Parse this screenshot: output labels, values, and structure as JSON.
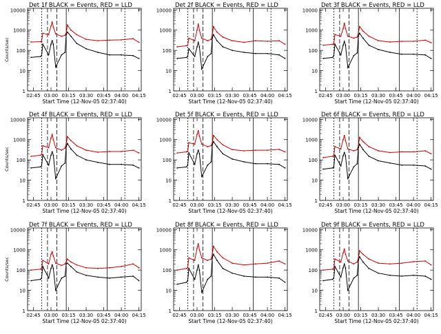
{
  "chart_data": [
    {
      "type": "line",
      "title": "Det 1f BLACK = Events, RED = LLD",
      "ylabel": "Counts/sec",
      "xlabel": "Start Time (12-Nov-05 02:37:40)",
      "x_ticks": [
        "02:45",
        "03:00",
        "03:15",
        "03:30",
        "03:45",
        "04:00",
        "04:15"
      ],
      "y_ticks": [
        "1",
        "10",
        "100",
        "1000",
        "10000"
      ],
      "yscale": "log",
      "ylim": [
        1,
        12000
      ],
      "x": [
        "02:43",
        "02:51",
        "02:52",
        "02:53",
        "02:58",
        "03:00",
        "03:01",
        "03:02",
        "03:04",
        "03:09",
        "03:12",
        "03:13",
        "03:14",
        "03:17",
        "03:22",
        "03:30",
        "03:40",
        "03:50",
        "04:00",
        "04:10",
        "04:15"
      ],
      "series": [
        {
          "color": "#cc0000",
          "values": [
            260,
            270,
            280,
            700,
            600,
            1600,
            2500,
            1400,
            650,
            500,
            560,
            700,
            1800,
            1000,
            600,
            350,
            300,
            320,
            330,
            380,
            250
          ]
        },
        {
          "color": "#000000",
          "values": [
            45,
            50,
            55,
            200,
            60,
            200,
            300,
            200,
            15,
            60,
            80,
            600,
            800,
            500,
            220,
            120,
            80,
            60,
            60,
            55,
            40
          ]
        }
      ]
    },
    {
      "type": "line",
      "title": "Det 2f BLACK = Events, RED = LLD",
      "ylabel": "",
      "xlabel": "Start Time (12-Nov-05 02:37:40)",
      "x_ticks": [
        "02:45",
        "03:00",
        "03:15",
        "03:30",
        "03:45",
        "04:00",
        "04:15"
      ],
      "y_ticks": [
        "1",
        "10",
        "100",
        "1000",
        "10000"
      ],
      "yscale": "log",
      "ylim": [
        1,
        12000
      ],
      "x": [
        "02:43",
        "02:51",
        "02:52",
        "02:53",
        "02:58",
        "03:00",
        "03:01",
        "03:02",
        "03:04",
        "03:09",
        "03:12",
        "03:13",
        "03:14",
        "03:17",
        "03:22",
        "03:30",
        "03:40",
        "03:50",
        "04:00",
        "04:10",
        "04:15"
      ],
      "series": [
        {
          "color": "#cc0000",
          "values": [
            150,
            170,
            180,
            400,
            300,
            1000,
            2000,
            1000,
            400,
            300,
            350,
            600,
            1500,
            800,
            450,
            300,
            250,
            300,
            280,
            300,
            200
          ]
        },
        {
          "color": "#000000",
          "values": [
            40,
            45,
            50,
            120,
            50,
            150,
            250,
            150,
            12,
            50,
            70,
            400,
            600,
            300,
            150,
            100,
            80,
            70,
            70,
            60,
            40
          ]
        }
      ]
    },
    {
      "type": "line",
      "title": "Det 3f BLACK = Events, RED = LLD",
      "ylabel": "",
      "xlabel": "Start Time (12-Nov-05 02:37:40)",
      "x_ticks": [
        "02:45",
        "03:00",
        "03:15",
        "03:30",
        "03:45",
        "04:00",
        "04:15"
      ],
      "y_ticks": [
        "1",
        "10",
        "100",
        "1000",
        "10000"
      ],
      "yscale": "log",
      "ylim": [
        1,
        12000
      ],
      "x": [
        "02:43",
        "02:51",
        "02:52",
        "02:53",
        "02:58",
        "03:00",
        "03:01",
        "03:02",
        "03:04",
        "03:09",
        "03:12",
        "03:13",
        "03:14",
        "03:17",
        "03:22",
        "03:30",
        "03:40",
        "03:50",
        "04:00",
        "04:10",
        "04:15"
      ],
      "series": [
        {
          "color": "#cc0000",
          "values": [
            180,
            200,
            210,
            600,
            500,
            1200,
            2200,
            1200,
            500,
            400,
            450,
            700,
            1500,
            900,
            500,
            300,
            260,
            280,
            280,
            320,
            240
          ]
        },
        {
          "color": "#000000",
          "values": [
            40,
            45,
            55,
            200,
            60,
            180,
            280,
            180,
            14,
            55,
            75,
            500,
            700,
            400,
            180,
            110,
            80,
            65,
            65,
            60,
            40
          ]
        }
      ]
    },
    {
      "type": "line",
      "title": "Det 4f BLACK = Events, RED = LLD",
      "ylabel": "Counts/sec",
      "xlabel": "Start Time (12-Nov-05 02:37:40)",
      "x_ticks": [
        "02:45",
        "03:00",
        "03:15",
        "03:30",
        "03:45",
        "04:00",
        "04:15"
      ],
      "y_ticks": [
        "1",
        "10",
        "100",
        "1000",
        "10000"
      ],
      "yscale": "log",
      "ylim": [
        1,
        12000
      ],
      "x": [
        "02:43",
        "02:51",
        "02:52",
        "02:53",
        "02:58",
        "03:00",
        "03:01",
        "03:02",
        "03:04",
        "03:09",
        "03:12",
        "03:13",
        "03:14",
        "03:17",
        "03:22",
        "03:30",
        "03:40",
        "03:50",
        "04:00",
        "04:10",
        "04:15"
      ],
      "series": [
        {
          "color": "#cc0000",
          "values": [
            150,
            170,
            180,
            500,
            400,
            1200,
            1800,
            1000,
            400,
            300,
            380,
            600,
            1400,
            900,
            500,
            300,
            240,
            260,
            260,
            300,
            220
          ]
        },
        {
          "color": "#000000",
          "values": [
            40,
            45,
            50,
            180,
            55,
            170,
            250,
            170,
            12,
            50,
            70,
            450,
            650,
            350,
            170,
            100,
            75,
            60,
            60,
            55,
            40
          ]
        }
      ]
    },
    {
      "type": "line",
      "title": "Det 5f BLACK = Events, RED = LLD",
      "ylabel": "",
      "xlabel": "Start Time (12-Nov-05 02:37:40)",
      "x_ticks": [
        "02:45",
        "03:00",
        "03:15",
        "03:30",
        "03:45",
        "04:00",
        "04:15"
      ],
      "y_ticks": [
        "1",
        "10",
        "100",
        "1000",
        "10000"
      ],
      "yscale": "log",
      "ylim": [
        1,
        12000
      ],
      "x": [
        "02:43",
        "02:51",
        "02:52",
        "02:53",
        "02:58",
        "03:00",
        "03:01",
        "03:02",
        "03:04",
        "03:09",
        "03:12",
        "03:13",
        "03:14",
        "03:17",
        "03:22",
        "03:30",
        "03:40",
        "03:50",
        "04:00",
        "04:10",
        "04:15"
      ],
      "series": [
        {
          "color": "#cc0000",
          "values": [
            220,
            250,
            260,
            700,
            600,
            1800,
            2800,
            1500,
            600,
            450,
            500,
            700,
            1600,
            1000,
            550,
            320,
            280,
            300,
            300,
            330,
            250
          ]
        },
        {
          "color": "#000000",
          "values": [
            40,
            45,
            55,
            220,
            60,
            200,
            300,
            200,
            15,
            55,
            80,
            550,
            800,
            450,
            200,
            110,
            80,
            65,
            65,
            60,
            40
          ]
        }
      ]
    },
    {
      "type": "line",
      "title": "Det 6f BLACK = Events, RED = LLD",
      "ylabel": "",
      "xlabel": "Start Time (12-Nov-05 02:37:40)",
      "x_ticks": [
        "02:45",
        "03:00",
        "03:15",
        "03:30",
        "03:45",
        "04:00",
        "04:15"
      ],
      "y_ticks": [
        "1",
        "10",
        "100",
        "1000",
        "10000"
      ],
      "yscale": "log",
      "ylim": [
        1,
        12000
      ],
      "x": [
        "02:43",
        "02:51",
        "02:52",
        "02:53",
        "02:58",
        "03:00",
        "03:01",
        "03:02",
        "03:04",
        "03:09",
        "03:12",
        "03:13",
        "03:14",
        "03:17",
        "03:22",
        "03:30",
        "03:40",
        "03:50",
        "04:00",
        "04:10",
        "04:15"
      ],
      "series": [
        {
          "color": "#cc0000",
          "values": [
            130,
            150,
            160,
            450,
            350,
            1000,
            1600,
            900,
            350,
            280,
            320,
            500,
            1300,
            800,
            450,
            280,
            230,
            250,
            250,
            280,
            200
          ]
        },
        {
          "color": "#000000",
          "values": [
            35,
            40,
            45,
            170,
            50,
            160,
            230,
            160,
            12,
            45,
            65,
            400,
            600,
            320,
            150,
            90,
            70,
            55,
            55,
            50,
            35
          ]
        }
      ]
    },
    {
      "type": "line",
      "title": "Det 7f BLACK = Events, RED = LLD",
      "ylabel": "Counts/sec",
      "xlabel": "Start Time (12-Nov-05 02:37:40)",
      "x_ticks": [
        "02:45",
        "03:00",
        "03:15",
        "03:30",
        "03:45",
        "04:00",
        "04:15"
      ],
      "y_ticks": [
        "1",
        "10",
        "100",
        "1000",
        "10000"
      ],
      "yscale": "log",
      "ylim": [
        1,
        12000
      ],
      "x": [
        "02:43",
        "02:51",
        "02:52",
        "02:53",
        "02:58",
        "03:00",
        "03:01",
        "03:02",
        "03:04",
        "03:09",
        "03:12",
        "03:13",
        "03:14",
        "03:17",
        "03:22",
        "03:30",
        "03:40",
        "03:50",
        "04:00",
        "04:10",
        "04:15"
      ],
      "series": [
        {
          "color": "#cc0000",
          "values": [
            100,
            110,
            120,
            300,
            200,
            600,
            800,
            500,
            220,
            170,
            200,
            250,
            350,
            250,
            180,
            130,
            120,
            130,
            150,
            200,
            130
          ]
        },
        {
          "color": "#000000",
          "values": [
            30,
            35,
            40,
            150,
            40,
            120,
            180,
            120,
            10,
            40,
            50,
            200,
            220,
            150,
            80,
            55,
            45,
            40,
            45,
            50,
            30
          ]
        }
      ]
    },
    {
      "type": "line",
      "title": "Det 8f BLACK = Events, RED = LLD",
      "ylabel": "",
      "xlabel": "Start Time (12-Nov-05 02:37:40)",
      "x_ticks": [
        "02:45",
        "03:00",
        "03:15",
        "03:30",
        "03:45",
        "04:00",
        "04:15"
      ],
      "y_ticks": [
        "1",
        "10",
        "100",
        "1000",
        "10000"
      ],
      "yscale": "log",
      "ylim": [
        1,
        12000
      ],
      "x": [
        "02:43",
        "02:51",
        "02:52",
        "02:53",
        "02:58",
        "03:00",
        "03:01",
        "03:02",
        "03:04",
        "03:09",
        "03:12",
        "03:13",
        "03:14",
        "03:17",
        "03:22",
        "03:30",
        "03:40",
        "03:50",
        "04:00",
        "04:10",
        "04:15"
      ],
      "series": [
        {
          "color": "#cc0000",
          "values": [
            100,
            120,
            130,
            400,
            300,
            1200,
            2000,
            1000,
            400,
            300,
            350,
            600,
            1500,
            800,
            400,
            220,
            180,
            200,
            220,
            280,
            200
          ]
        },
        {
          "color": "#000000",
          "values": [
            20,
            25,
            30,
            120,
            35,
            100,
            180,
            100,
            8,
            35,
            50,
            400,
            600,
            300,
            120,
            70,
            50,
            45,
            45,
            40,
            25
          ]
        }
      ]
    },
    {
      "type": "line",
      "title": "Det 9f BLACK = Events, RED = LLD",
      "ylabel": "",
      "xlabel": "Start Time (12-Nov-05 02:37:40)",
      "x_ticks": [
        "02:45",
        "03:00",
        "03:15",
        "03:30",
        "03:45",
        "04:00",
        "04:15"
      ],
      "y_ticks": [
        "1",
        "10",
        "100",
        "1000",
        "10000"
      ],
      "yscale": "log",
      "ylim": [
        1,
        12000
      ],
      "x": [
        "02:43",
        "02:51",
        "02:52",
        "02:53",
        "02:58",
        "03:00",
        "03:01",
        "03:02",
        "03:04",
        "03:09",
        "03:12",
        "03:13",
        "03:14",
        "03:17",
        "03:22",
        "03:30",
        "03:40",
        "03:50",
        "04:00",
        "04:10",
        "04:15"
      ],
      "series": [
        {
          "color": "#cc0000",
          "values": [
            100,
            110,
            120,
            350,
            250,
            700,
            1100,
            600,
            280,
            200,
            250,
            380,
            900,
            600,
            350,
            220,
            200,
            220,
            260,
            280,
            180
          ]
        },
        {
          "color": "#000000",
          "values": [
            30,
            35,
            40,
            150,
            45,
            130,
            200,
            130,
            10,
            40,
            55,
            300,
            450,
            250,
            120,
            70,
            55,
            50,
            55,
            50,
            35
          ]
        }
      ]
    }
  ]
}
